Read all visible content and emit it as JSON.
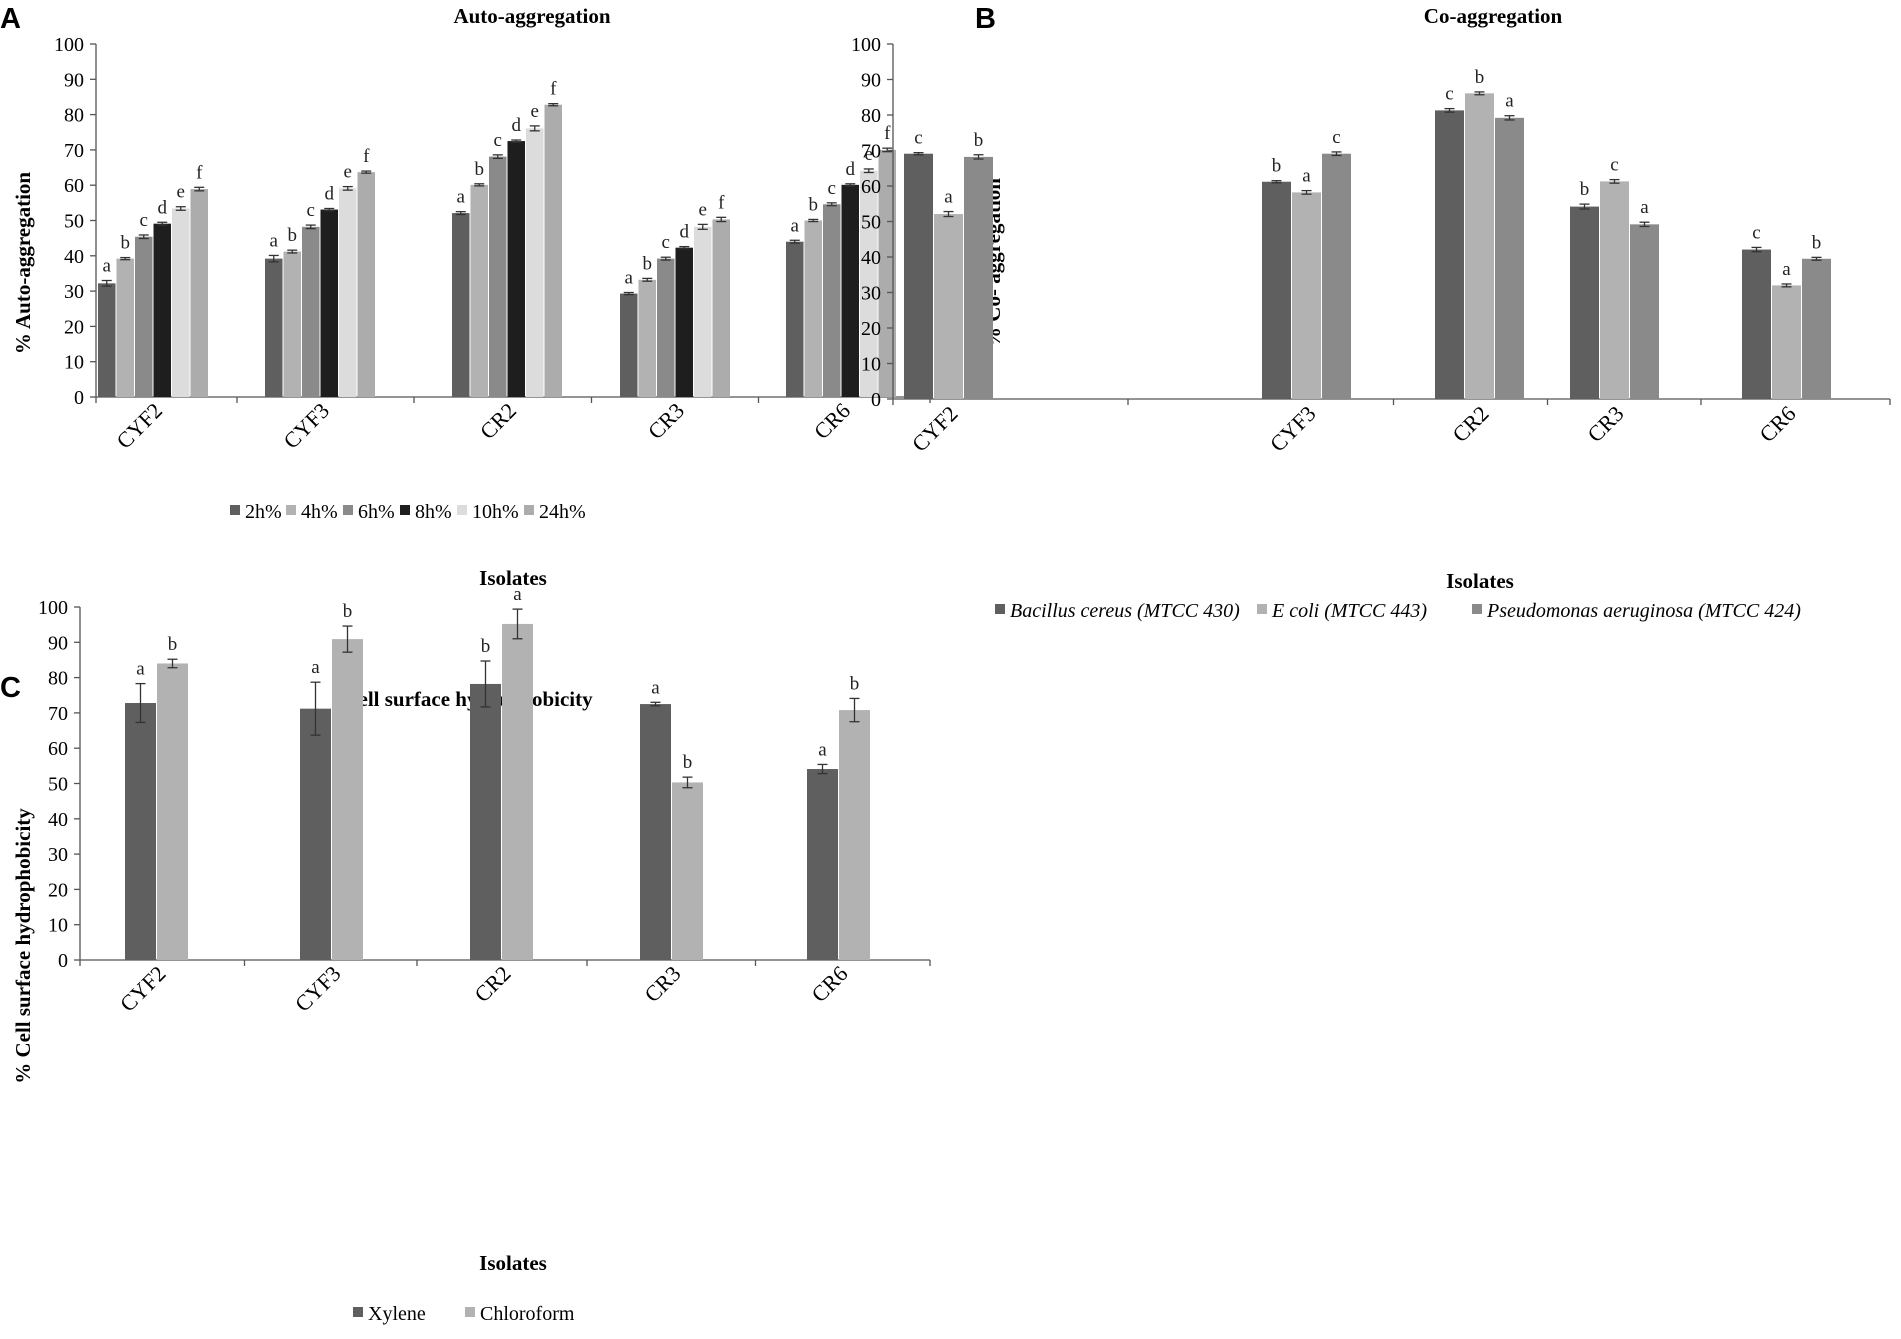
{
  "panels": {
    "A": {
      "letter": "A"
    },
    "B": {
      "letter": "B"
    },
    "C": {
      "letter": "C"
    }
  },
  "chart_data": [
    {
      "id": "A",
      "type": "bar",
      "title": "Auto-aggregation",
      "xlabel": "Isolates",
      "ylabel": "% Auto-aggregation",
      "ylim": [
        0,
        100
      ],
      "yticks": [
        0,
        10,
        20,
        30,
        40,
        50,
        60,
        70,
        80,
        90,
        100
      ],
      "categories": [
        "CYF2",
        "CYF3",
        "CR2",
        "CR3",
        "CR6"
      ],
      "legend_position": "bottom",
      "series": [
        {
          "name": "2h%",
          "color": "#5f5f5f",
          "values": [
            32.2,
            39.2,
            52.1,
            29.3,
            44.0
          ],
          "errors": [
            0.8,
            0.9,
            0.4,
            0.3,
            0.4
          ],
          "letters": [
            "a",
            "a",
            "a",
            "a",
            "a"
          ]
        },
        {
          "name": "4h%",
          "color": "#b2b2b2",
          "values": [
            39.2,
            41.2,
            60.1,
            33.2,
            50.0
          ],
          "errors": [
            0.3,
            0.4,
            0.3,
            0.4,
            0.3
          ],
          "letters": [
            "b",
            "b",
            "b",
            "b",
            "b"
          ]
        },
        {
          "name": "6h%",
          "color": "#8a8a8a",
          "values": [
            45.4,
            48.2,
            68.1,
            39.2,
            54.6
          ],
          "errors": [
            0.5,
            0.5,
            0.5,
            0.4,
            0.4
          ],
          "letters": [
            "c",
            "c",
            "c",
            "c",
            "c"
          ]
        },
        {
          "name": "8h%",
          "color": "#1e1e1e",
          "values": [
            49.1,
            53.1,
            72.5,
            42.3,
            60.1
          ],
          "errors": [
            0.4,
            0.3,
            0.3,
            0.3,
            0.3
          ],
          "letters": [
            "d",
            "d",
            "d",
            "d",
            "d"
          ]
        },
        {
          "name": "10h%",
          "color": "#dcdcdc",
          "values": [
            53.4,
            59.1,
            76.1,
            48.2,
            64.1
          ],
          "errors": [
            0.5,
            0.5,
            0.7,
            0.7,
            0.5
          ],
          "letters": [
            "e",
            "e",
            "e",
            "e",
            "e"
          ]
        },
        {
          "name": "24h%",
          "color": "#acacac",
          "values": [
            58.9,
            63.7,
            82.8,
            50.3,
            70.0
          ],
          "errors": [
            0.5,
            0.3,
            0.3,
            0.6,
            0.5
          ],
          "letters": [
            "f",
            "f",
            "f",
            "f",
            "f"
          ]
        }
      ]
    },
    {
      "id": "B",
      "type": "bar",
      "title": "Co-aggregation",
      "xlabel": "Isolates",
      "ylabel": "% Co- aggregation",
      "ylim": [
        0,
        100
      ],
      "yticks": [
        0,
        10,
        20,
        30,
        40,
        50,
        60,
        70,
        80,
        90,
        100
      ],
      "categories": [
        "CYF2",
        "CYF3",
        "CR2",
        "CR3",
        "CR6"
      ],
      "legend_position": "bottom",
      "series": [
        {
          "name": "Bacillus cereus (MTCC 430)",
          "color": "#5f5f5f",
          "values": [
            69.1,
            61.2,
            81.3,
            54.2,
            42.1
          ],
          "errors": [
            0.3,
            0.3,
            0.5,
            0.7,
            0.6
          ],
          "letters": [
            "c",
            "b",
            "c",
            "b",
            "c"
          ]
        },
        {
          "name": "E coli (MTCC 443)",
          "color": "#b2b2b2",
          "values": [
            52.1,
            58.2,
            86.1,
            61.3,
            32.0
          ],
          "errors": [
            0.7,
            0.5,
            0.4,
            0.5,
            0.4
          ],
          "letters": [
            "a",
            "a",
            "b",
            "c",
            "a"
          ]
        },
        {
          "name": "Pseudomonas aeruginosa (MTCC 424)",
          "color": "#8a8a8a",
          "values": [
            68.2,
            69.1,
            79.2,
            49.2,
            39.5
          ],
          "errors": [
            0.6,
            0.5,
            0.6,
            0.6,
            0.4
          ],
          "letters": [
            "b",
            "c",
            "a",
            "a",
            "b"
          ]
        }
      ]
    },
    {
      "id": "C",
      "type": "bar",
      "title": "Cell surface hydrophobicity",
      "xlabel": "Isolates",
      "ylabel": "% Cell surface hydrophobicity",
      "ylim": [
        0,
        100
      ],
      "yticks": [
        0,
        10,
        20,
        30,
        40,
        50,
        60,
        70,
        80,
        90,
        100
      ],
      "categories": [
        "CYF2",
        "CYF3",
        "CR2",
        "CR3",
        "CR6"
      ],
      "legend_position": "bottom",
      "series": [
        {
          "name": "Xylene",
          "color": "#5f5f5f",
          "values": [
            72.8,
            71.2,
            78.2,
            72.5,
            54.1
          ],
          "errors": [
            5.5,
            7.5,
            6.5,
            0.5,
            1.3
          ],
          "letters": [
            "a",
            "a",
            "b",
            "a",
            "a"
          ]
        },
        {
          "name": "Chloroform",
          "color": "#b2b2b2",
          "values": [
            84.0,
            90.9,
            95.2,
            50.3,
            70.8
          ],
          "errors": [
            1.2,
            3.7,
            4.2,
            1.5,
            3.3
          ],
          "letters": [
            "b",
            "b",
            "a",
            "b",
            "b"
          ]
        }
      ]
    }
  ]
}
